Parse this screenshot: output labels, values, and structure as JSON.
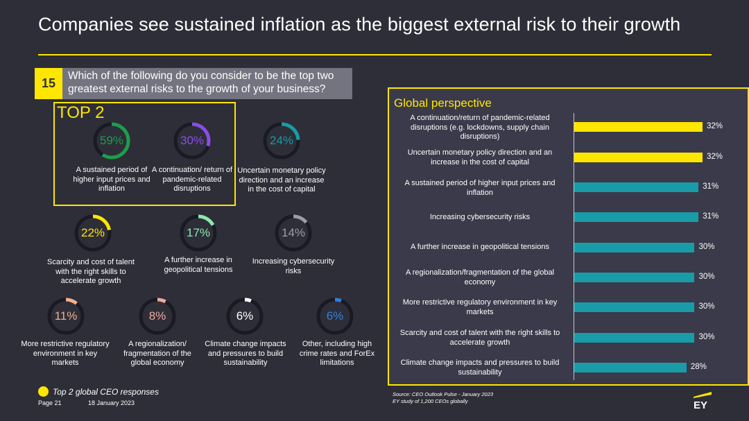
{
  "page": {
    "title": "Companies see sustained inflation as the biggest external risk to their growth",
    "question_number": "15",
    "question_text": "Which of the following do you consider to be the top two greatest external risks to the growth of your business?",
    "top2_label": "TOP 2",
    "legend_text": "Top 2 global CEO responses",
    "page_number": "Page 21",
    "date": "18 January 2023",
    "source_line1": "Source: CEO Outlook Pulse - January 2023",
    "source_line2": "EY study of 1,200 CEOs globally",
    "logo_text": "EY"
  },
  "colors": {
    "background": "#2e2e38",
    "accent_yellow": "#ffe600",
    "bar_teal": "#1a9ba8",
    "track_grey": "#1a1a24"
  },
  "chart_data": [
    {
      "type": "donut",
      "items": [
        {
          "value": 59,
          "label": "59%",
          "color": "#1e9d4a",
          "description": "A sustained period of higher input prices and inflation",
          "top2": true
        },
        {
          "value": 30,
          "label": "30%",
          "color": "#8a4de8",
          "description": "A continuation/ return of pandemic-related disruptions",
          "top2": true
        },
        {
          "value": 24,
          "label": "24%",
          "color": "#1a9ba8",
          "description": "Uncertain monetary policy direction and an increase in the cost of capital",
          "top2": false
        },
        {
          "value": 22,
          "label": "22%",
          "color": "#ffe600",
          "description": "Scarcity and cost of talent with the right skills to accelerate growth",
          "top2": false
        },
        {
          "value": 17,
          "label": "17%",
          "color": "#8ce8ad",
          "description": "A further increase in geopolitical tensions",
          "top2": false
        },
        {
          "value": 14,
          "label": "14%",
          "color": "#9c9ca8",
          "description": "Increasing cybersecurity risks",
          "top2": false
        },
        {
          "value": 11,
          "label": "11%",
          "color": "#f3b08a",
          "description": "More restrictive regulatory environment in key markets",
          "top2": false
        },
        {
          "value": 8,
          "label": "8%",
          "color": "#f0a8a0",
          "description": "A regionalization/ fragmentation of the global economy",
          "top2": false
        },
        {
          "value": 6,
          "label": "6%",
          "color": "#ffffff",
          "description": "Climate change impacts and pressures to build sustainability",
          "top2": false
        },
        {
          "value": 6,
          "label": "6%",
          "color": "#2f80e0",
          "description": "Other, including high crime rates and ForEx limitations",
          "top2": false
        }
      ]
    },
    {
      "type": "bar",
      "orientation": "horizontal",
      "title": "Global perspective",
      "categories": [
        "A continuation/return of pandemic-related disruptions (e.g. lockdowns, supply chain disruptions)",
        "Uncertain monetary policy direction and an increase in the cost of capital",
        "A sustained period of higher input prices and inflation",
        "Increasing cybersecurity risks",
        "A further increase in geopolitical tensions",
        "A regionalization/fragmentation of the global economy",
        "More restrictive regulatory environment in key markets",
        "Scarcity and cost of talent with the right skills to accelerate growth",
        "Climate change impacts and pressures to build sustainability"
      ],
      "values": [
        32,
        32,
        31,
        31,
        30,
        30,
        30,
        30,
        28
      ],
      "value_labels": [
        "32%",
        "32%",
        "31%",
        "31%",
        "30%",
        "30%",
        "30%",
        "30%",
        "28%"
      ],
      "highlight": [
        true,
        true,
        false,
        false,
        false,
        false,
        false,
        false,
        false
      ]
    }
  ]
}
